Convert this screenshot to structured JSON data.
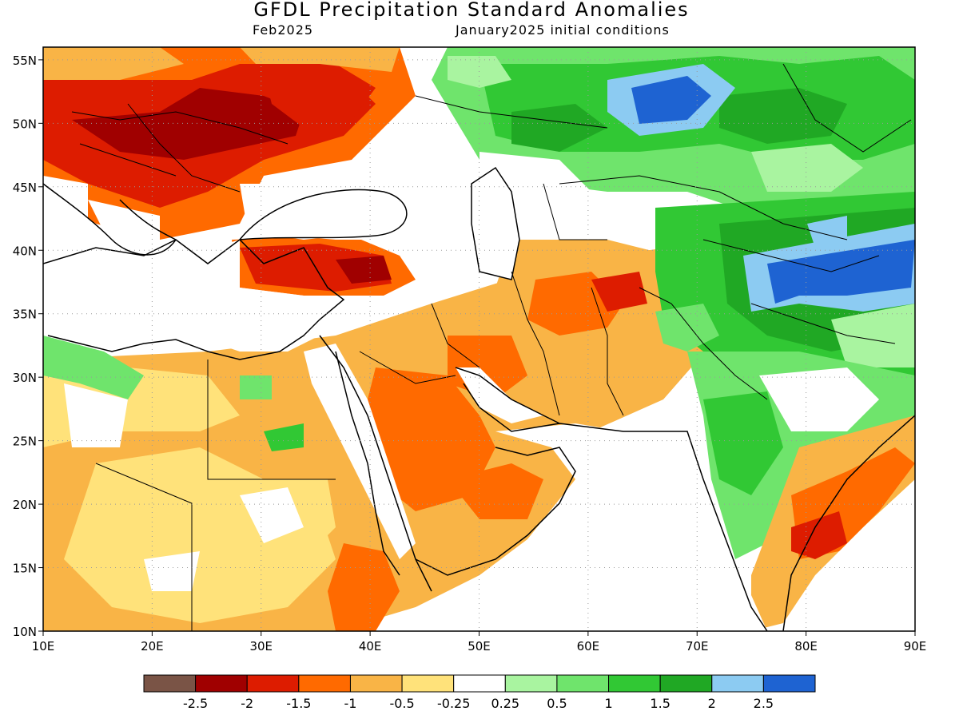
{
  "header": {
    "title": "GFDL Precipitation Standard Anomalies",
    "forecast_month": "Feb2025",
    "initial_conditions": "January2025 initial conditions"
  },
  "map": {
    "lon_range": [
      10,
      90
    ],
    "lat_range": [
      10,
      56
    ],
    "lon_ticks": [
      "10E",
      "20E",
      "30E",
      "40E",
      "50E",
      "60E",
      "70E",
      "80E",
      "90E"
    ],
    "lat_ticks": [
      "10N",
      "15N",
      "20N",
      "25N",
      "30N",
      "35N",
      "40N",
      "45N",
      "50N",
      "55N"
    ],
    "grid": "dotted"
  },
  "colorbar": {
    "colors": [
      "#7a5446",
      "#a00000",
      "#dd1c00",
      "#ff6a00",
      "#f9b446",
      "#ffe27a",
      "#ffffff",
      "#a9f4a0",
      "#6fe46c",
      "#31c834",
      "#20a824",
      "#8ccbf2",
      "#1e63d2"
    ],
    "labels": [
      "-2.5",
      "-2",
      "-1.5",
      "-1",
      "-0.5",
      "-0.25",
      "0.25",
      "0.5",
      "1",
      "1.5",
      "2",
      "2.5"
    ]
  }
}
